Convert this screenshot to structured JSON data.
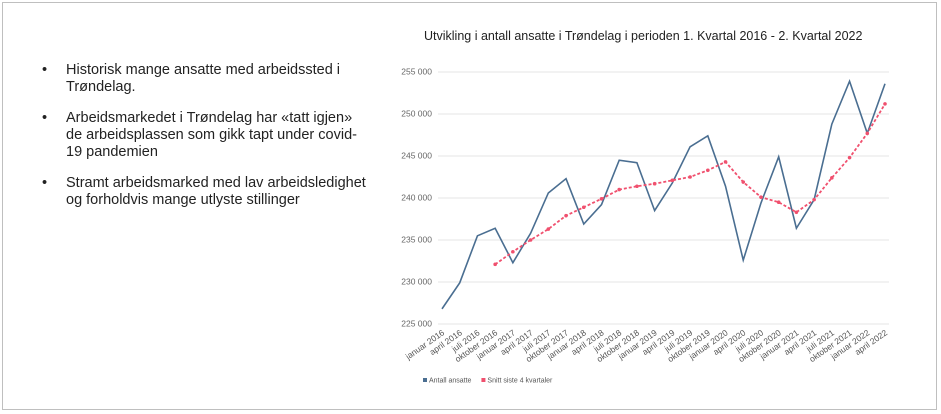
{
  "bullets": [
    "Historisk mange ansatte med arbeidssted i Trøndelag.",
    "Arbeidsmarkedet i Trøndelag har «tatt igjen» de arbeidsplassen som gikk tapt under covid-19 pandemien",
    "Stramt arbeidsmarked med lav arbeidsledighet og forholdvis mange utlyste stillinger"
  ],
  "chart_data": {
    "type": "line",
    "title": "Utvikling i antall ansatte i Trøndelag i perioden 1. Kvartal 2016 - 2. Kvartal 2022",
    "categories": [
      "januar 2016",
      "april 2016",
      "juli 2016",
      "oktober 2016",
      "januar 2017",
      "april 2017",
      "juli 2017",
      "oktober 2017",
      "januar 2018",
      "april 2018",
      "juli 2018",
      "oktober 2018",
      "januar 2019",
      "april 2019",
      "juli 2019",
      "oktober 2019",
      "januar 2020",
      "april 2020",
      "juli 2020",
      "oktober 2020",
      "januar 2021",
      "april 2021",
      "juli 2021",
      "oktober 2021",
      "januar 2022",
      "april 2022"
    ],
    "series": [
      {
        "name": "Antall ansatte",
        "color": "#4a6e91",
        "dashed": false,
        "markers": false,
        "values": [
          226800,
          229900,
          235500,
          236400,
          232300,
          235800,
          240600,
          242300,
          236900,
          239200,
          244500,
          244200,
          238500,
          241800,
          246100,
          247400,
          241400,
          232600,
          239400,
          244900,
          236400,
          239800,
          248800,
          253900,
          247700,
          253600
        ]
      },
      {
        "name": "Snitt siste 4 kvartaler",
        "color": "#f0506e",
        "dashed": true,
        "markers": true,
        "values": [
          null,
          null,
          null,
          232100,
          233600,
          235000,
          236300,
          237900,
          238900,
          239900,
          241000,
          241400,
          241700,
          242100,
          242500,
          243300,
          244300,
          241900,
          240100,
          239500,
          238300,
          239800,
          242400,
          244800,
          247700,
          251200
        ]
      }
    ],
    "ylim": [
      225000,
      255000
    ],
    "yticks": [
      {
        "value": 225000,
        "label": "225 000"
      },
      {
        "value": 230000,
        "label": "230 000"
      },
      {
        "value": 235000,
        "label": "235 000"
      },
      {
        "value": 240000,
        "label": "240 000"
      },
      {
        "value": 245000,
        "label": "245 000"
      },
      {
        "value": 250000,
        "label": "250 000"
      },
      {
        "value": 255000,
        "label": "255 000"
      }
    ],
    "grid": true,
    "legend": "bottom"
  }
}
